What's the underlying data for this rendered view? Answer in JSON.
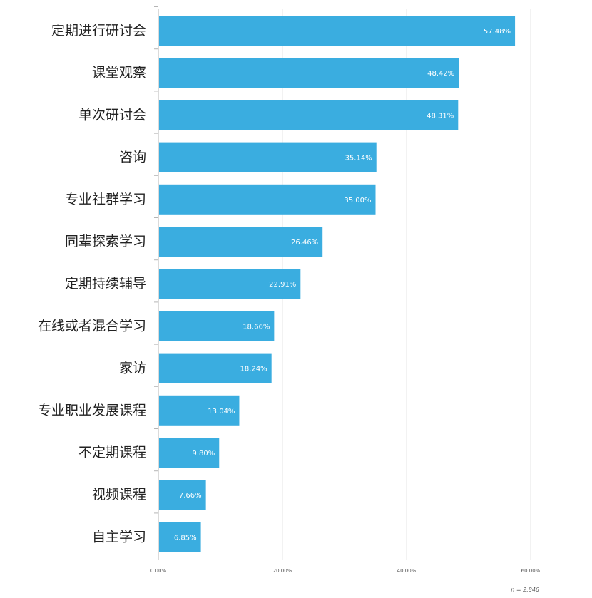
{
  "chart_data": {
    "type": "bar",
    "orientation": "horizontal",
    "categories": [
      "定期进行研讨会",
      "课堂观察",
      "单次研讨会",
      "咨询",
      "专业社群学习",
      "同辈探索学习",
      "定期持续辅导",
      "在线或者混合学习",
      "家访",
      "专业职业发展课程",
      "不定期课程",
      "视频课程",
      "自主学习"
    ],
    "values": [
      57.48,
      48.42,
      48.31,
      35.14,
      35.0,
      26.46,
      22.91,
      18.66,
      18.24,
      13.04,
      9.8,
      7.66,
      6.85
    ],
    "value_labels": [
      "57.48%",
      "48.42%",
      "48.31%",
      "35.14%",
      "35.00%",
      "26.46%",
      "22.91%",
      "18.66%",
      "18.24%",
      "13.04%",
      "9.80%",
      "7.66%",
      "6.85%"
    ],
    "xlim": [
      0,
      60
    ],
    "x_ticks": [
      0,
      20,
      40,
      60
    ],
    "x_tick_labels": [
      "0.00%",
      "20.00%",
      "40.00%",
      "60.00%"
    ],
    "grid": true,
    "bar_color": "#3aade0",
    "note": "n = 2,846",
    "title": "",
    "xlabel": "",
    "ylabel": ""
  }
}
